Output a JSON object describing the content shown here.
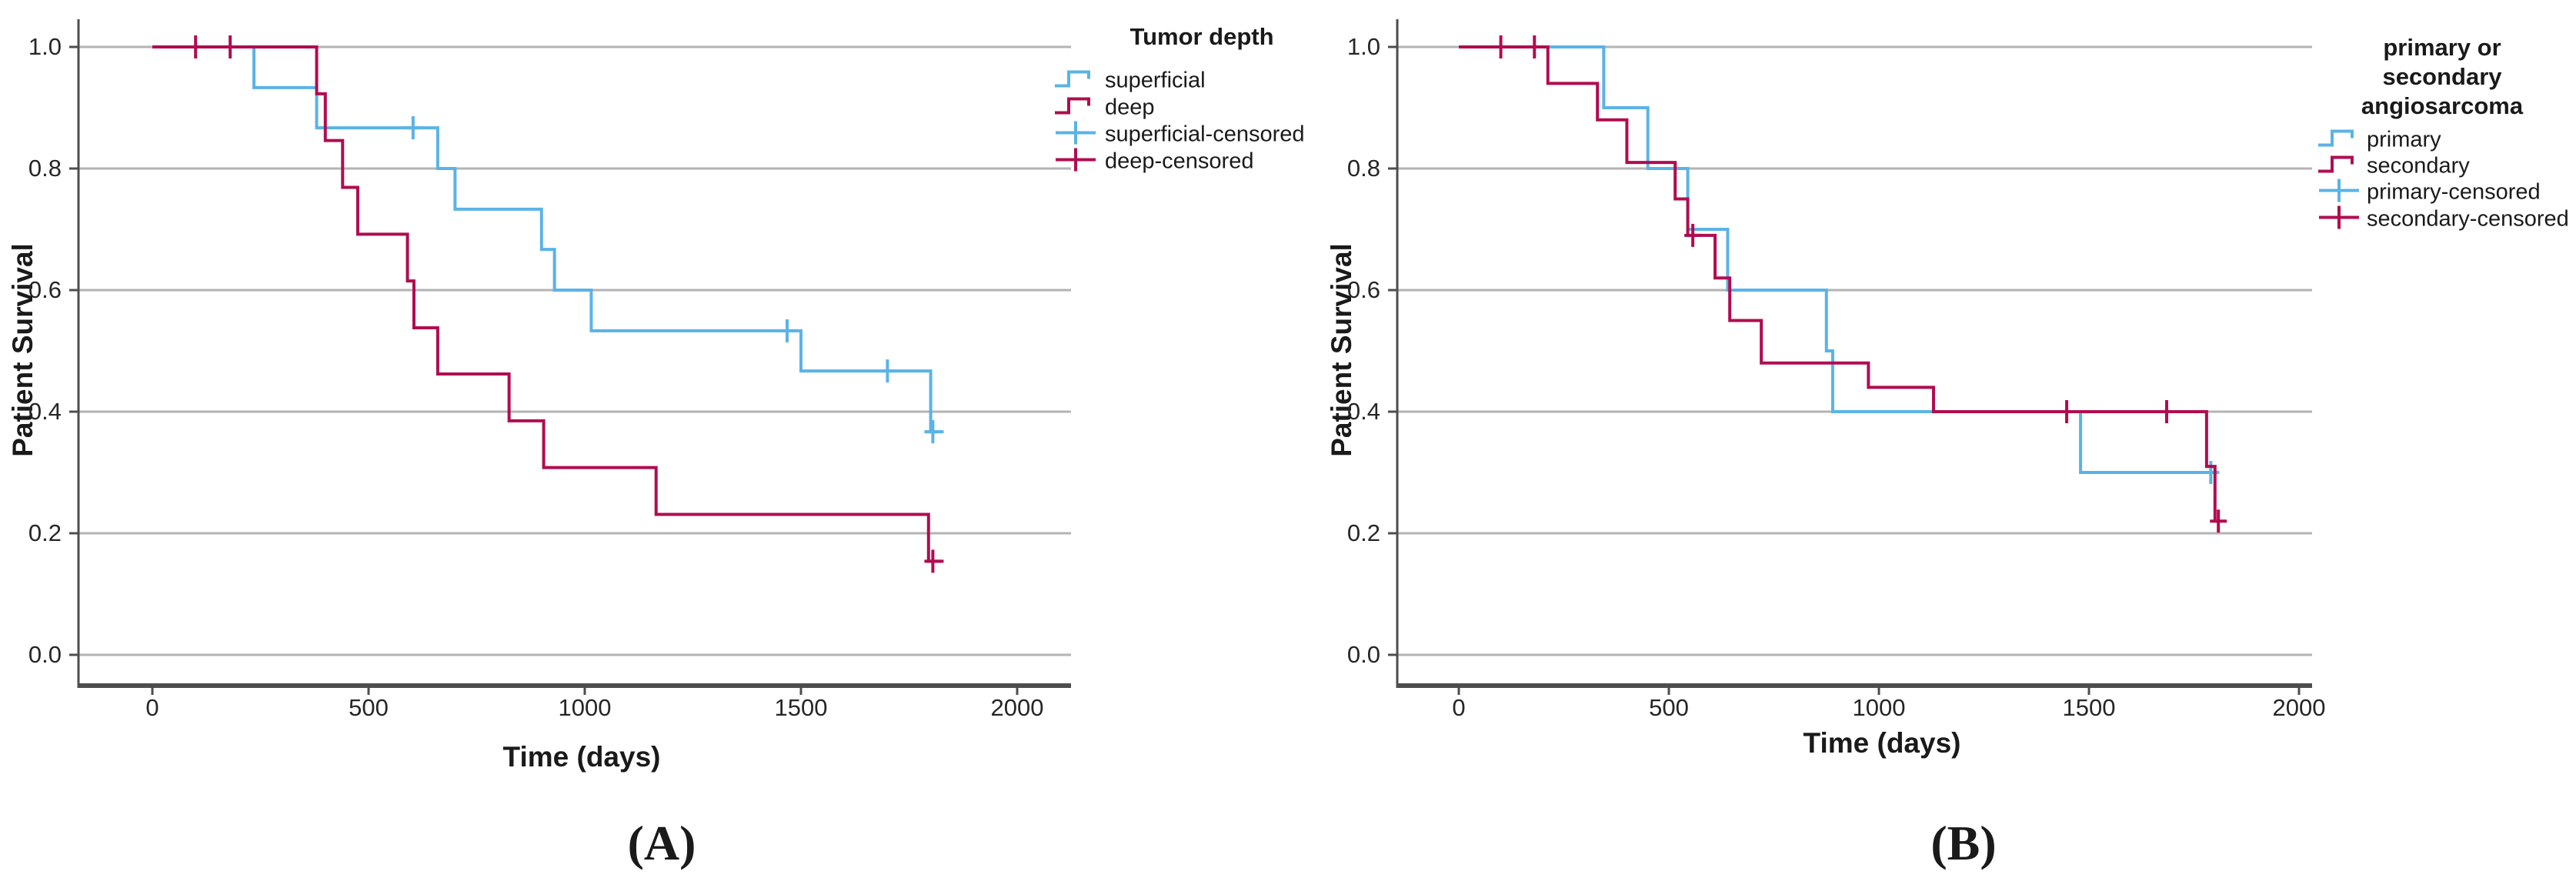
{
  "colors": {
    "blue": "#5ab3e6",
    "red": "#b00d50",
    "gridline": "#b3b3b3",
    "axis": "#4d4d4d",
    "text": "#1a1a1a"
  },
  "chart_data": [
    {
      "type": "line",
      "style": "kaplan-meier-step",
      "panel_label": "(A)",
      "xlabel": "Time (days)",
      "ylabel": "Patient Survival",
      "x_ticks": [
        0,
        500,
        1000,
        1500,
        2000
      ],
      "y_tick_labels": [
        "1.0",
        "0.8",
        "0.6",
        "0.4",
        "0.2",
        "0.0"
      ],
      "y_tick_values": [
        1.0,
        0.8,
        0.6,
        0.4,
        0.2,
        0.0
      ],
      "xlim": [
        -170,
        2120
      ],
      "ylim": [
        0,
        1.05
      ],
      "grid": true,
      "legend_position": "right",
      "legend_title_lines": [
        "Tumor depth"
      ],
      "legend_items": [
        {
          "label": "superficial",
          "swatch": "step",
          "color": "#5ab3e6"
        },
        {
          "label": "deep",
          "swatch": "step",
          "color": "#b00d50"
        },
        {
          "label": "superficial-censored",
          "swatch": "plus",
          "color": "#5ab3e6"
        },
        {
          "label": "deep-censored",
          "swatch": "plus",
          "color": "#b00d50"
        }
      ],
      "series": [
        {
          "name": "superficial",
          "color": "#5ab3e6",
          "steps": [
            [
              0,
              1.0
            ],
            [
              235,
              0.933
            ],
            [
              380,
              0.867
            ],
            [
              660,
              0.8
            ],
            [
              700,
              0.733
            ],
            [
              900,
              0.667
            ],
            [
              930,
              0.6
            ],
            [
              1015,
              0.533
            ],
            [
              1500,
              0.467
            ],
            [
              1800,
              0.367
            ]
          ],
          "end_time": 1830,
          "censored": [
            [
              603,
              0.867
            ],
            [
              1468,
              0.533
            ],
            [
              1700,
              0.467
            ],
            [
              1805,
              0.367
            ]
          ]
        },
        {
          "name": "deep",
          "color": "#b00d50",
          "steps": [
            [
              0,
              1.0
            ],
            [
              380,
              0.923
            ],
            [
              400,
              0.846
            ],
            [
              440,
              0.769
            ],
            [
              475,
              0.692
            ],
            [
              590,
              0.615
            ],
            [
              605,
              0.538
            ],
            [
              660,
              0.462
            ],
            [
              825,
              0.385
            ],
            [
              905,
              0.308
            ],
            [
              1165,
              0.231
            ],
            [
              1795,
              0.154
            ]
          ],
          "end_time": 1830,
          "censored": [
            [
              100,
              1.0
            ],
            [
              180,
              1.0
            ],
            [
              1805,
              0.154
            ]
          ]
        }
      ]
    },
    {
      "type": "line",
      "style": "kaplan-meier-step",
      "panel_label": "(B)",
      "xlabel": "Time (days)",
      "ylabel": "Patient Survival",
      "x_ticks": [
        0,
        500,
        1000,
        1500,
        2000
      ],
      "y_tick_labels": [
        "1.0",
        "0.8",
        "0.6",
        "0.4",
        "0.2",
        "0.0"
      ],
      "y_tick_values": [
        1.0,
        0.8,
        0.6,
        0.4,
        0.2,
        0.0
      ],
      "xlim": [
        -145,
        2030
      ],
      "ylim": [
        0,
        1.05
      ],
      "grid": true,
      "legend_position": "right",
      "legend_title_lines": [
        "primary or",
        "secondary",
        "angiosarcoma"
      ],
      "legend_items": [
        {
          "label": "primary",
          "swatch": "step",
          "color": "#5ab3e6"
        },
        {
          "label": "secondary",
          "swatch": "step",
          "color": "#b00d50"
        },
        {
          "label": "primary-censored",
          "swatch": "plus",
          "color": "#5ab3e6"
        },
        {
          "label": "secondary-censored",
          "swatch": "plus",
          "color": "#b00d50"
        }
      ],
      "series": [
        {
          "name": "primary",
          "color": "#5ab3e6",
          "steps": [
            [
              0,
              1.0
            ],
            [
              345,
              0.9
            ],
            [
              450,
              0.8
            ],
            [
              545,
              0.7
            ],
            [
              640,
              0.6
            ],
            [
              875,
              0.5
            ],
            [
              890,
              0.4
            ],
            [
              1480,
              0.3
            ]
          ],
          "end_time": 1800,
          "censored": [
            [
              1790,
              0.3
            ]
          ]
        },
        {
          "name": "secondary",
          "color": "#b00d50",
          "steps": [
            [
              0,
              1.0
            ],
            [
              212,
              0.94
            ],
            [
              330,
              0.88
            ],
            [
              400,
              0.81
            ],
            [
              515,
              0.75
            ],
            [
              545,
              0.69
            ],
            [
              610,
              0.62
            ],
            [
              645,
              0.55
            ],
            [
              720,
              0.48
            ],
            [
              975,
              0.44
            ],
            [
              1130,
              0.4
            ],
            [
              1780,
              0.31
            ],
            [
              1800,
              0.22
            ]
          ],
          "end_time": 1815,
          "censored": [
            [
              100,
              1.0
            ],
            [
              180,
              1.0
            ],
            [
              557,
              0.69
            ],
            [
              1447,
              0.4
            ],
            [
              1685,
              0.4
            ],
            [
              1808,
              0.22
            ]
          ]
        }
      ]
    }
  ]
}
